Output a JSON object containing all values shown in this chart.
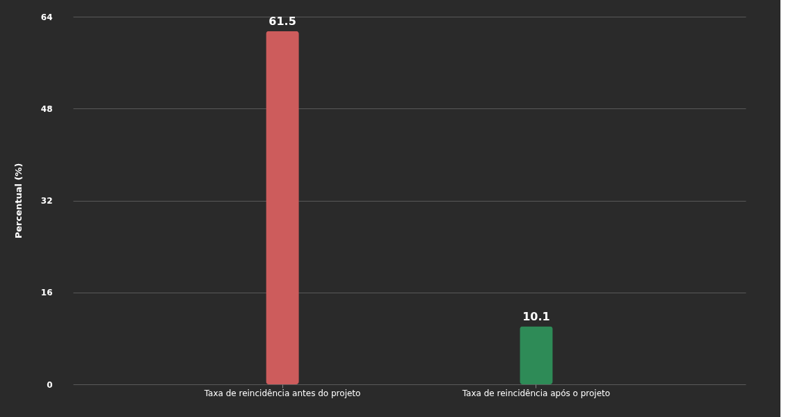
{
  "chart_data": {
    "type": "bar",
    "ylabel": "Percentual (%)",
    "categories": [
      "Taxa de reincidência antes do projeto",
      "Taxa de reincidência após o projeto"
    ],
    "values": [
      61.5,
      10.1
    ],
    "colors": [
      "#cd5c5c",
      "#2e8b57"
    ],
    "ylim": [
      0,
      64
    ],
    "yticks": [
      0,
      16,
      32,
      48,
      64
    ],
    "grid": "y",
    "data_labels": true
  }
}
